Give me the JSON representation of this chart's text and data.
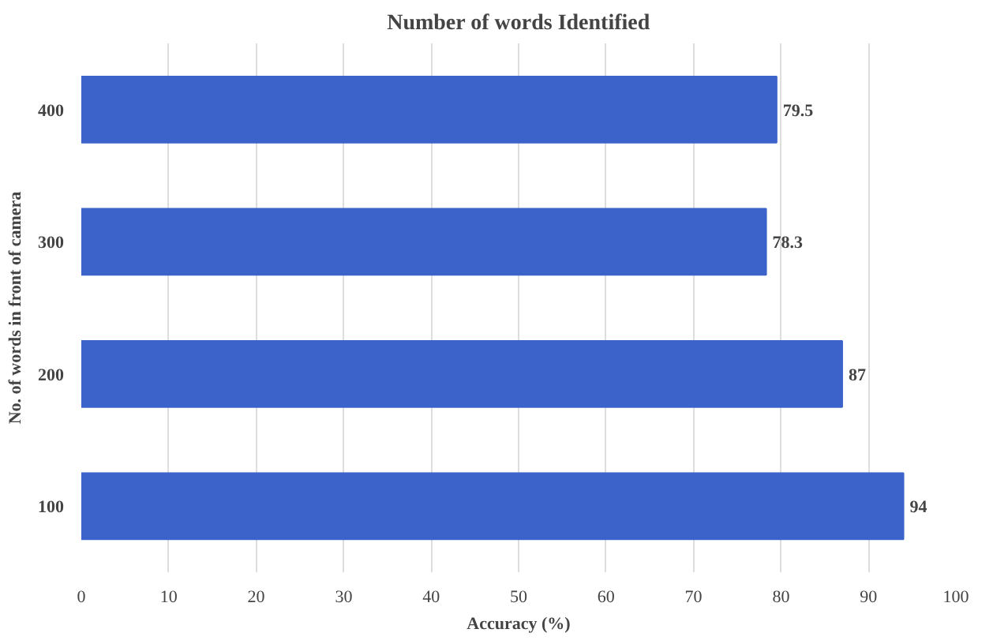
{
  "chart_data": {
    "type": "bar",
    "orientation": "horizontal",
    "title": "Number of words Identified",
    "xlabel": "Accuracy (%)",
    "ylabel": "No. of words in front of camera",
    "categories": [
      "400",
      "300",
      "200",
      "100"
    ],
    "values": [
      79.5,
      78.3,
      87,
      94
    ],
    "color": "#3b63c9",
    "xlim": [
      0,
      100
    ],
    "xticks": [
      0,
      10,
      20,
      30,
      40,
      50,
      60,
      70,
      80,
      90,
      100
    ],
    "grid": "x",
    "data_labels": true
  }
}
